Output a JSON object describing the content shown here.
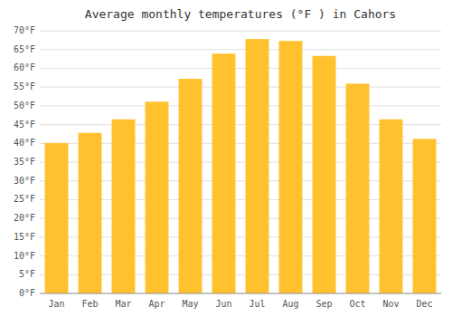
{
  "chart_data": {
    "type": "bar",
    "title": "Average monthly temperatures (°F ) in Cahors",
    "categories": [
      "Jan",
      "Feb",
      "Mar",
      "Apr",
      "May",
      "Jun",
      "Jul",
      "Aug",
      "Sep",
      "Oct",
      "Nov",
      "Dec"
    ],
    "values": [
      40.1,
      42.8,
      46.4,
      51.1,
      57.2,
      63.9,
      67.8,
      67.3,
      63.3,
      55.9,
      46.4,
      41.2
    ],
    "color": "#FFC12E",
    "ylim": [
      0,
      70
    ],
    "yticks": [
      {
        "value": 0,
        "label": "0°F"
      },
      {
        "value": 5,
        "label": "5°F"
      },
      {
        "value": 10,
        "label": "10°F"
      },
      {
        "value": 15,
        "label": "15°F"
      },
      {
        "value": 20,
        "label": "20°F"
      },
      {
        "value": 25,
        "label": "25°F"
      },
      {
        "value": 30,
        "label": "30°F"
      },
      {
        "value": 35,
        "label": "35°F"
      },
      {
        "value": 40,
        "label": "40°F"
      },
      {
        "value": 45,
        "label": "45°F"
      },
      {
        "value": 50,
        "label": "50°F"
      },
      {
        "value": 55,
        "label": "55°F"
      },
      {
        "value": 60,
        "label": "60°F"
      },
      {
        "value": 65,
        "label": "65°F"
      },
      {
        "value": 70,
        "label": "70°F"
      }
    ],
    "grid": true
  }
}
